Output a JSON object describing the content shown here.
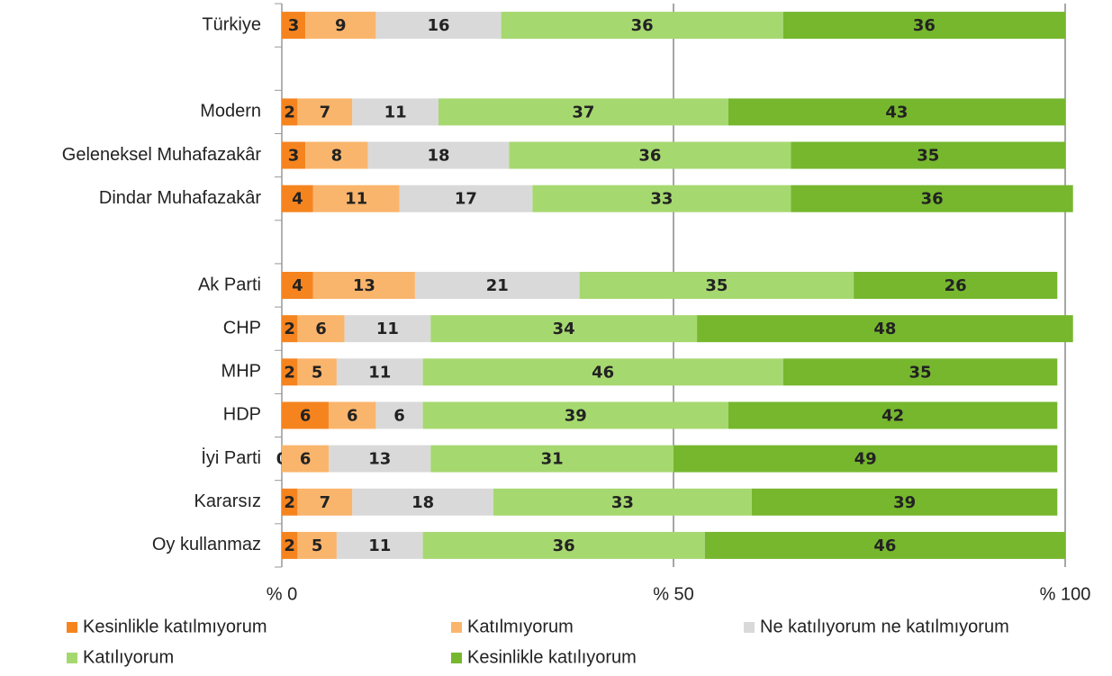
{
  "chart_data": {
    "type": "stacked_bar_horizontal",
    "categories": [
      "Türkiye",
      null,
      "Modern",
      "Geleneksel Muhafazakâr",
      "Dindar Muhafazakâr",
      null,
      "Ak Parti",
      "CHP",
      "MHP",
      "HDP",
      "İyi Parti",
      "Kararsız",
      "Oy kullanmaz"
    ],
    "series": [
      {
        "name": "Kesinlikle katılmıyorum",
        "color": "#f5841f",
        "values": [
          3,
          null,
          2,
          3,
          4,
          null,
          4,
          2,
          2,
          6,
          0,
          2,
          2
        ]
      },
      {
        "name": "Katılmıyorum",
        "color": "#fab56c",
        "values": [
          9,
          null,
          7,
          8,
          11,
          null,
          13,
          6,
          5,
          6,
          6,
          7,
          5
        ]
      },
      {
        "name": "Ne katılıyorum ne katılmıyorum",
        "color": "#d9d9d9",
        "values": [
          16,
          null,
          11,
          18,
          17,
          null,
          21,
          11,
          11,
          6,
          13,
          18,
          11
        ]
      },
      {
        "name": "Katılıyorum",
        "color": "#a6d870",
        "values": [
          36,
          null,
          37,
          36,
          33,
          null,
          35,
          34,
          46,
          39,
          31,
          33,
          36
        ]
      },
      {
        "name": "Kesinlikle katılıyorum",
        "color": "#76b72e",
        "values": [
          36,
          null,
          43,
          35,
          36,
          null,
          26,
          48,
          35,
          42,
          49,
          39,
          46
        ]
      }
    ],
    "xlim": [
      0,
      100
    ],
    "xticks": [
      {
        "value": 0,
        "label": "% 0"
      },
      {
        "value": 50,
        "label": "% 50"
      },
      {
        "value": 100,
        "label": "% 100"
      }
    ],
    "grid": true
  }
}
